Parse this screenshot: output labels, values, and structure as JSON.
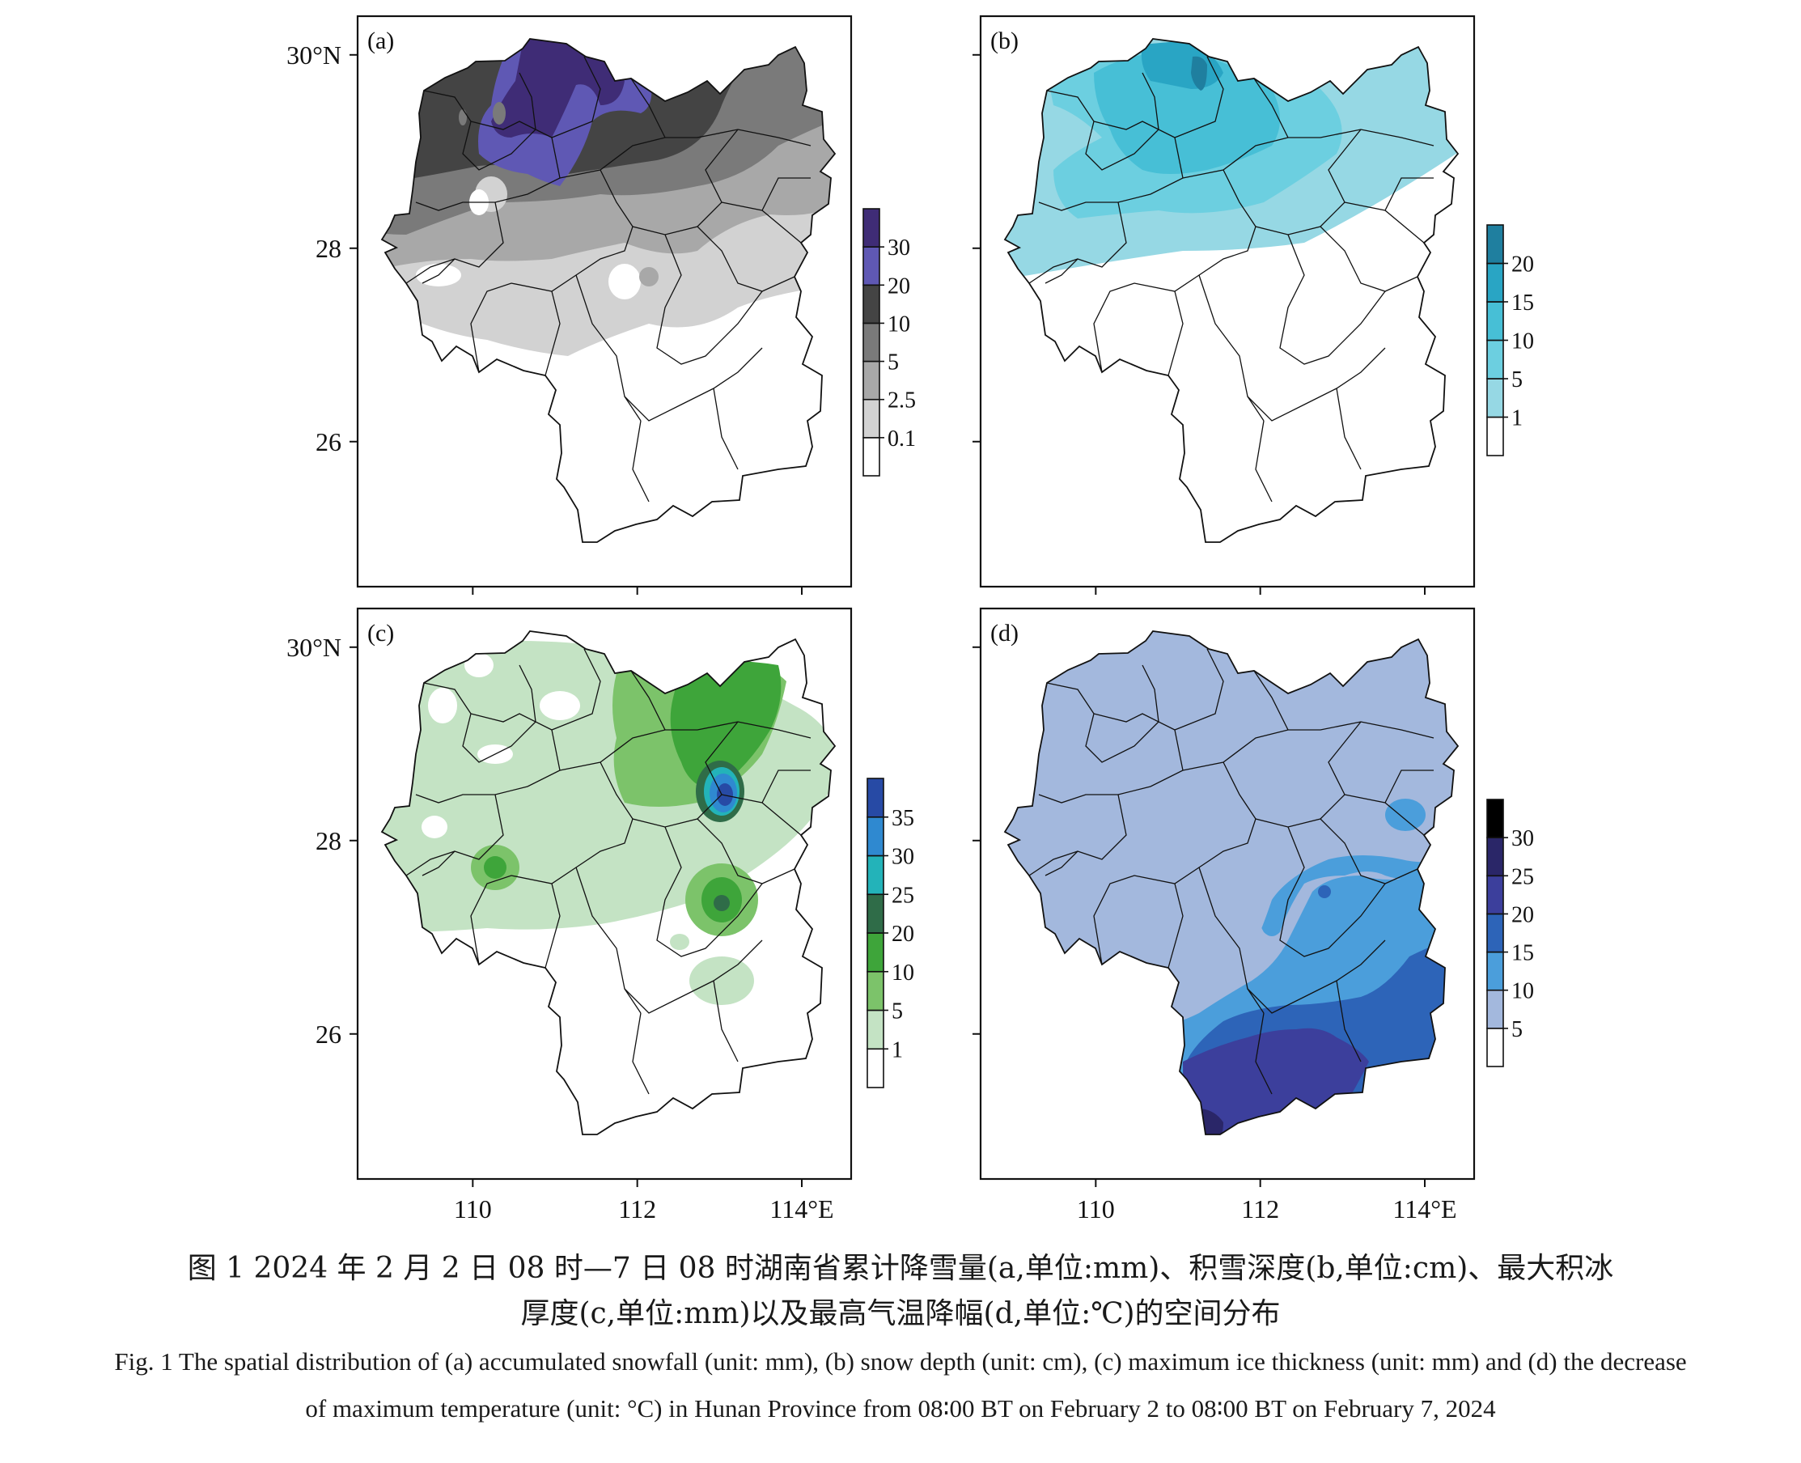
{
  "figure": {
    "caption_cn_line1": "图 1 2024 年 2 月 2 日 08 时—7 日 08 时湖南省累计降雪量(a,单位:mm)、积雪深度(b,单位:cm)、最大积冰",
    "caption_cn_line2": "厚度(c,单位:mm)以及最高气温降幅(d,单位:℃)的空间分布",
    "caption_en_line1": "Fig. 1 The spatial distribution of (a) accumulated snowfall (unit: mm), (b) snow depth (unit: cm), (c) maximum ice thickness (unit: mm) and (d) the decrease",
    "caption_en_line2": "of maximum temperature (unit: °C) in Hunan Province from 08∶00 BT on February 2 to 08∶00 BT on February 7, 2024"
  },
  "axes": {
    "lat_ticks": [
      {
        "value": 30,
        "label": "30°N"
      },
      {
        "value": 28,
        "label": "28"
      },
      {
        "value": 26,
        "label": "26"
      }
    ],
    "lon_ticks": [
      {
        "value": 110,
        "label": "110"
      },
      {
        "value": 112,
        "label": "112"
      },
      {
        "value": 114,
        "label": "114°E"
      }
    ],
    "lon_range": [
      108.6,
      114.6
    ],
    "lat_range": [
      24.5,
      30.4
    ]
  },
  "panels": [
    {
      "id": "a",
      "label": "(a)",
      "legend": {
        "levels": [
          "0.1",
          "2.5",
          "5",
          "10",
          "20",
          "30"
        ],
        "colors": [
          "#ffffff",
          "#d2d2d2",
          "#a8a8a8",
          "#7a7a7a",
          "#444444",
          "#5f58b4",
          "#3f2c76"
        ]
      }
    },
    {
      "id": "b",
      "label": "(b)",
      "legend": {
        "levels": [
          "1",
          "5",
          "10",
          "15",
          "20"
        ],
        "colors": [
          "#ffffff",
          "#96d8e4",
          "#6ccfe0",
          "#47bfd6",
          "#29a5c4",
          "#1f7f9f"
        ]
      }
    },
    {
      "id": "c",
      "label": "(c)",
      "legend": {
        "levels": [
          "1",
          "5",
          "10",
          "20",
          "25",
          "30",
          "35"
        ],
        "colors": [
          "#ffffff",
          "#c4e3c4",
          "#7cc36a",
          "#3ea53a",
          "#2f6c48",
          "#23b3b9",
          "#2f89d0",
          "#274aa5"
        ]
      }
    },
    {
      "id": "d",
      "label": "(d)",
      "legend": {
        "levels": [
          "5",
          "10",
          "15",
          "20",
          "25",
          "30"
        ],
        "colors": [
          "#ffffff",
          "#a3b8dd",
          "#4b9edb",
          "#2d64b8",
          "#3c3f9c",
          "#2a2668",
          "#000000"
        ]
      }
    }
  ]
}
